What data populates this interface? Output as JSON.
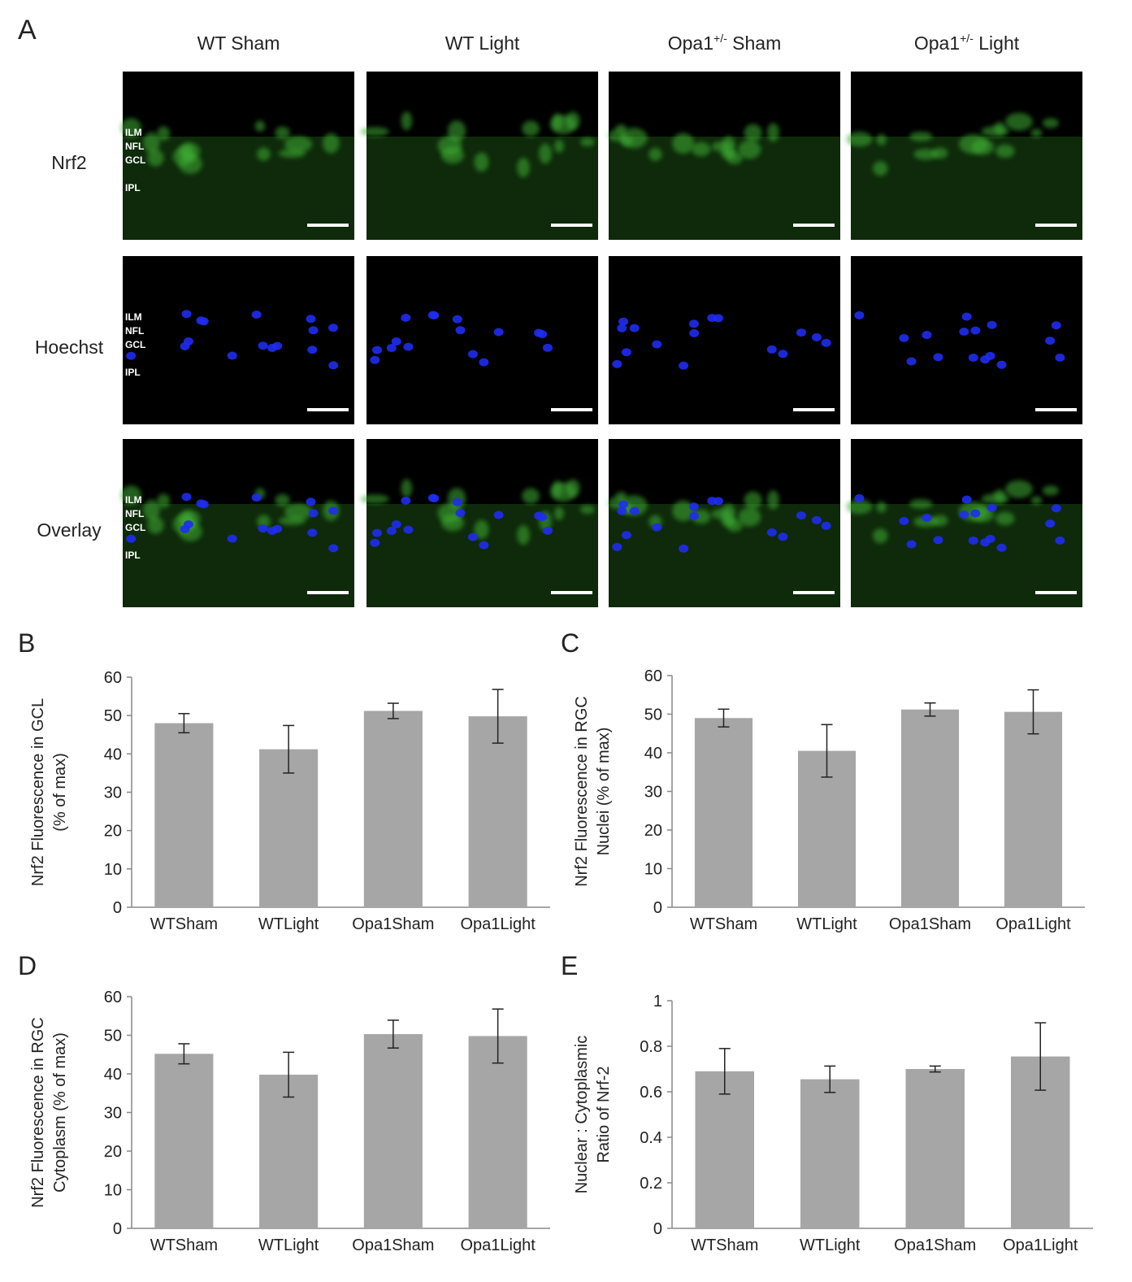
{
  "panel_a": {
    "label": "A",
    "columns": [
      {
        "text": "WT Sham"
      },
      {
        "text": "WT Light"
      },
      {
        "text": "Opa1",
        "sup": "+/-",
        "after": " Sham"
      },
      {
        "text": "Opa1",
        "sup": "+/-",
        "after": " Light"
      }
    ],
    "rows": [
      "Nrf2",
      "Hoechst",
      "Overlay"
    ],
    "layers": [
      "ILM",
      "NFL",
      "GCL",
      "IPL"
    ]
  },
  "chart_data": [
    {
      "type": "bar",
      "label": "B",
      "ylabel": [
        "Nrf2 Fluorescence in GCL",
        "(% of max)"
      ],
      "categories": [
        "WTSham",
        "WTLight",
        "Opa1Sham",
        "Opa1Light"
      ],
      "values": [
        48,
        41.2,
        51.2,
        49.8
      ],
      "errors": [
        2.5,
        6.2,
        2,
        7
      ],
      "color": "#a6a6a6",
      "ylim": [
        0,
        60
      ],
      "yticks": [
        0,
        10,
        20,
        30,
        40,
        50,
        60
      ]
    },
    {
      "type": "bar",
      "label": "C",
      "ylabel": [
        "Nrf2 Fluorescence in RGC",
        "Nuclei (% of max)"
      ],
      "categories": [
        "WTSham",
        "WTLight",
        "Opa1Sham",
        "Opa1Light"
      ],
      "values": [
        49,
        40.5,
        51.2,
        50.6
      ],
      "errors": [
        2.3,
        6.8,
        1.7,
        5.7
      ],
      "color": "#a6a6a6",
      "ylim": [
        0,
        60
      ],
      "yticks": [
        0,
        10,
        20,
        30,
        40,
        50,
        60
      ]
    },
    {
      "type": "bar",
      "label": "D",
      "ylabel": [
        "Nrf2 Fluorescence in RGC",
        "Cytoplasm (% of max)"
      ],
      "categories": [
        "WTSham",
        "WTLight",
        "Opa1Sham",
        "Opa1Light"
      ],
      "values": [
        45.2,
        39.8,
        50.3,
        49.8
      ],
      "errors": [
        2.6,
        5.8,
        3.6,
        7
      ],
      "color": "#a6a6a6",
      "ylim": [
        0,
        60
      ],
      "yticks": [
        0,
        10,
        20,
        30,
        40,
        50,
        60
      ]
    },
    {
      "type": "bar",
      "label": "E",
      "ylabel": [
        "Nuclear : Cytoplasmic",
        "Ratio of Nrf-2"
      ],
      "categories": [
        "WTSham",
        "WTLight",
        "Opa1Sham",
        "Opa1Light"
      ],
      "values": [
        0.69,
        0.655,
        0.7,
        0.755
      ],
      "errors": [
        0.1,
        0.058,
        0.013,
        0.148
      ],
      "color": "#a6a6a6",
      "ylim": [
        0,
        1
      ],
      "yticks": [
        0,
        0.2,
        0.4,
        0.6,
        0.8,
        1
      ]
    }
  ]
}
